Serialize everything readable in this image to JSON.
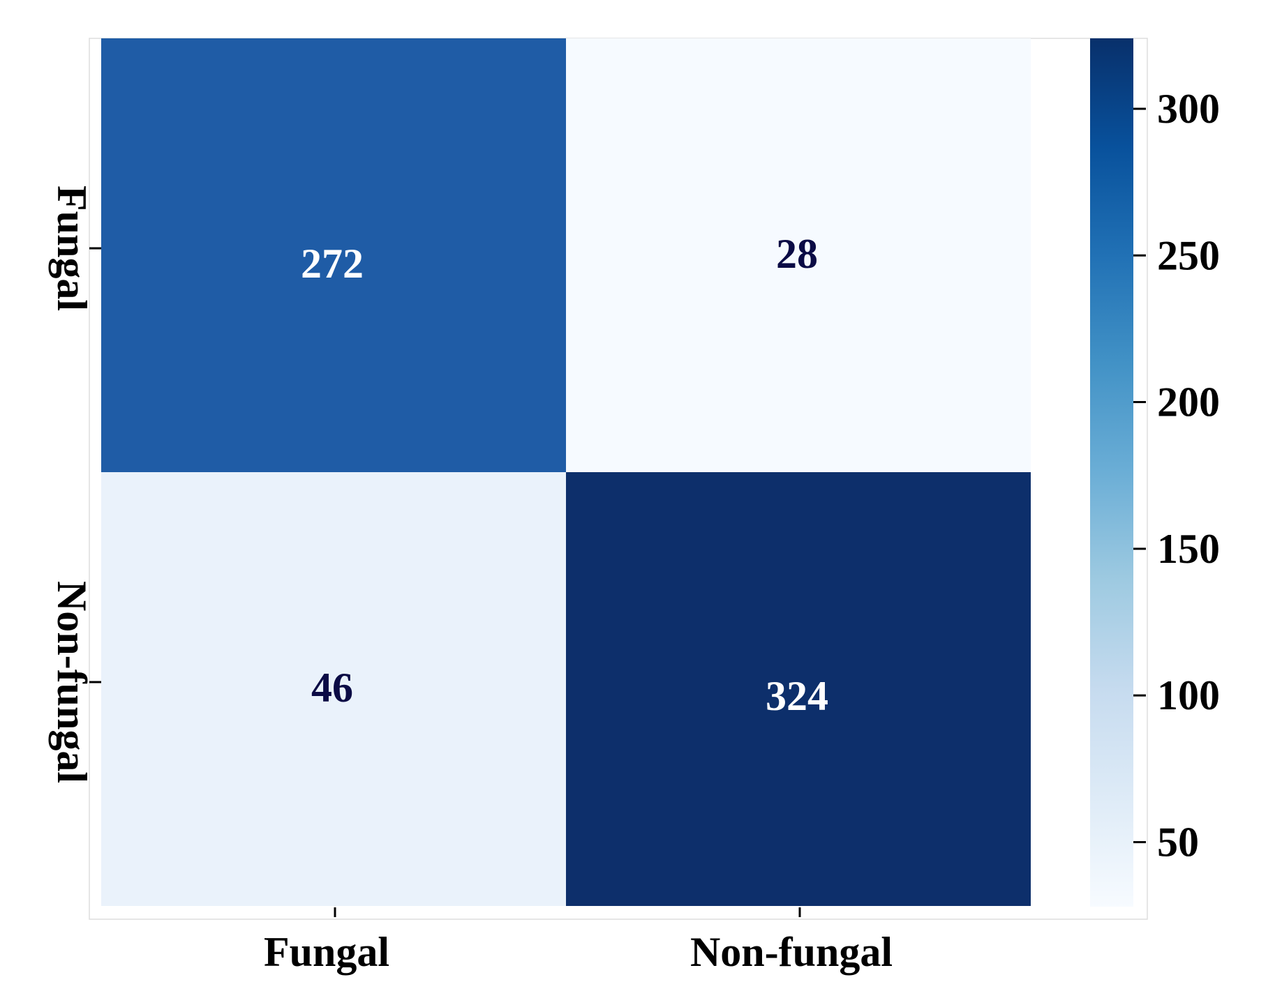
{
  "chart_data": {
    "type": "heatmap",
    "title": "",
    "xlabel": "",
    "ylabel": "",
    "x_categories": [
      "Fungal",
      "Non-fungal"
    ],
    "y_categories": [
      "Fungal",
      "Non-fungal"
    ],
    "values": [
      [
        272,
        28
      ],
      [
        46,
        324
      ]
    ],
    "colormap": "Blues",
    "colorbar": {
      "range": [
        28,
        324
      ],
      "ticks": [
        50,
        100,
        150,
        200,
        250,
        300
      ]
    },
    "colors": {
      "cell_272": "#1f5ca6",
      "cell_28": "#f6faff",
      "cell_46": "#eaf2fb",
      "cell_324": "#0d2f6b",
      "label_dark": "#0b0b45",
      "label_light": "#ffffff"
    }
  }
}
